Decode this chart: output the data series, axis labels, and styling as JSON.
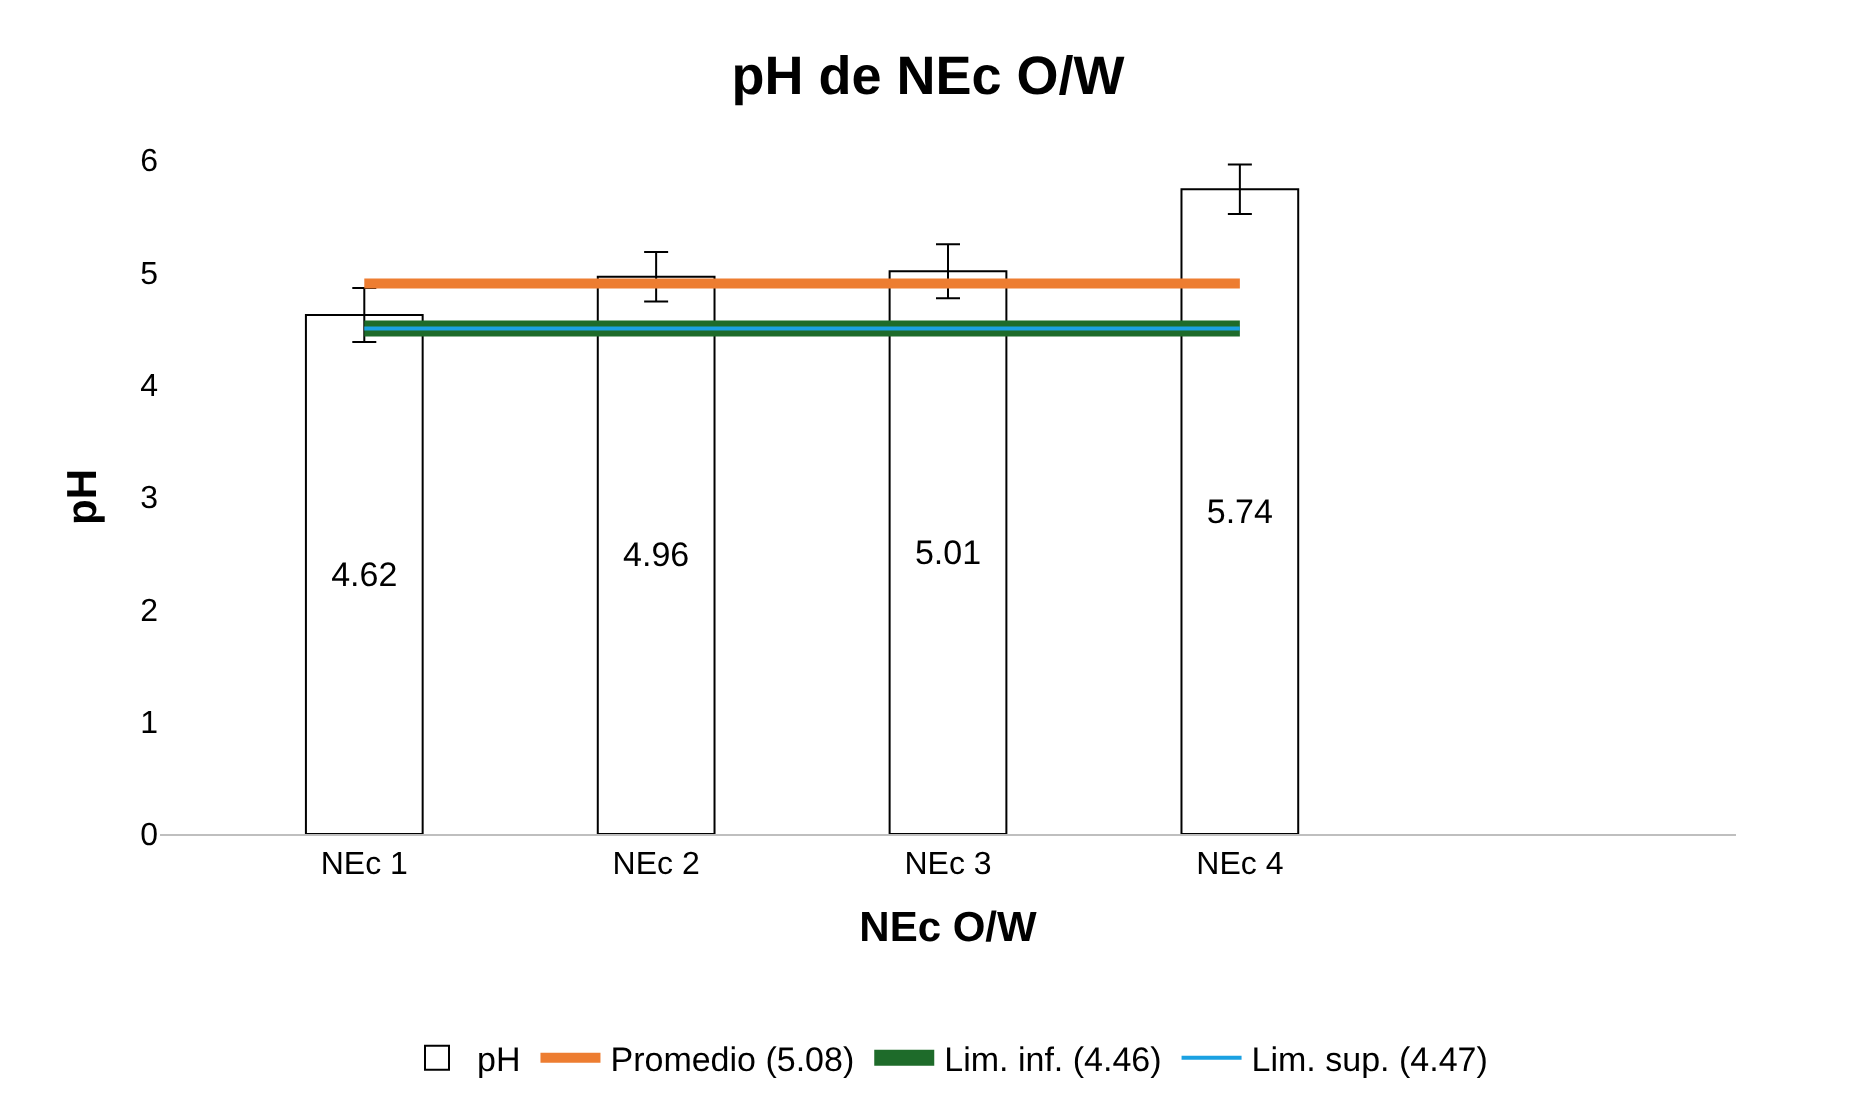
{
  "chart_data": {
    "type": "bar",
    "title": "pH de NEc O/W",
    "xlabel": "NEc O/W",
    "ylabel": "pH",
    "categories": [
      "NEc 1",
      "NEc 2",
      "NEc 3",
      "NEc 4",
      null
    ],
    "ylim": [
      0,
      6
    ],
    "yticks": [
      0,
      1,
      2,
      3,
      4,
      5,
      6
    ],
    "grid": false,
    "legend": "bottom",
    "series": [
      {
        "name": "pH",
        "color": "#ffffff",
        "values": [
          4.62,
          4.96,
          5.01,
          5.74,
          null
        ],
        "value_labels": [
          "4.62",
          "4.96",
          "5.01",
          "5.74",
          null
        ],
        "errors": [
          0.24,
          0.22,
          0.24,
          0.22,
          null
        ]
      },
      {
        "name": "Promedio (5.08)",
        "type": "line",
        "color": "#ed7d31",
        "values": [
          4.9,
          4.9,
          4.9,
          4.9,
          null
        ]
      },
      {
        "name": "Lim. inf. (4.46)",
        "type": "line",
        "color": "#1e6b2a",
        "values": [
          4.5,
          4.5,
          4.5,
          4.5,
          null
        ]
      },
      {
        "name": "Lim. sup. (4.47)",
        "type": "line",
        "color": "#1ba1e2",
        "values": [
          4.5,
          4.5,
          4.5,
          4.5,
          null
        ]
      }
    ]
  }
}
